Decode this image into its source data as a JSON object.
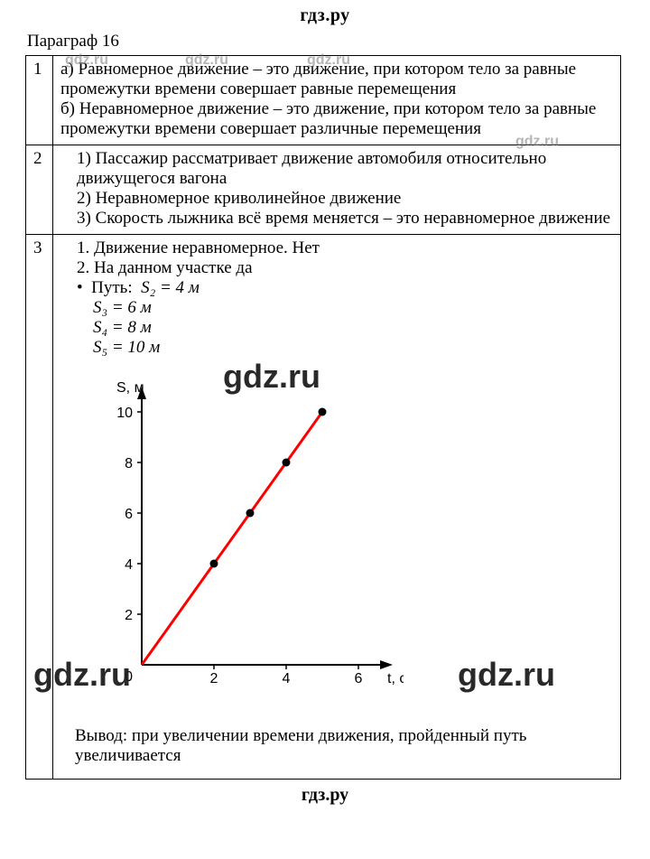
{
  "site": {
    "name": "гдз.ру"
  },
  "watermark": "gdz.ru",
  "title": "Параграф 16",
  "rows": [
    {
      "num": "1",
      "a": "а) Равномерное движение – это движение, при котором тело за равные промежутки времени совершает равные перемещения",
      "b": "б) Неравномерное движение – это движение, при котором тело за равные промежутки времени совершает различные перемещения"
    },
    {
      "num": "2",
      "l1": "1) Пассажир рассматривает движение автомобиля относительно движущегося вагона",
      "l2": "2) Неравномерное криволинейное движение",
      "l3": "3) Скорость лыжника всё время меняется – это неравномерное движение"
    },
    {
      "num": "3",
      "l1": "1.  Движение неравномерное. Нет",
      "l2": "2.  На данном участке да",
      "path_label": "Путь:",
      "s2": "S₂ = 4 м",
      "s3": "S₃ = 6 м",
      "s4": "S₄ = 8 м",
      "s5": "S₅ = 10 м",
      "conclusion": "Вывод: при увеличении времени движения, пройденный путь увеличивается"
    }
  ],
  "chart": {
    "type": "scatter-line",
    "x_label": "t, с",
    "y_label": "S, м",
    "xlim": [
      0,
      6
    ],
    "ylim": [
      0,
      10
    ],
    "xticks": [
      0,
      2,
      4,
      6
    ],
    "yticks": [
      2,
      4,
      6,
      8,
      10
    ],
    "points": [
      {
        "x": 2,
        "y": 4
      },
      {
        "x": 3,
        "y": 6
      },
      {
        "x": 4,
        "y": 8
      },
      {
        "x": 5,
        "y": 10
      }
    ],
    "line": {
      "x1": 0,
      "y1": 0,
      "x2": 5,
      "y2": 10
    },
    "line_color": "#ff0000",
    "line_width": 3,
    "marker_color": "#000000",
    "marker_radius": 4.5,
    "axis_color": "#000000",
    "axis_width": 2,
    "background_color": "#ffffff",
    "tick_fontsize": 16,
    "label_fontsize": 16,
    "plot": {
      "ox": 70,
      "oy": 330,
      "sx": 40,
      "sy": 28
    }
  }
}
